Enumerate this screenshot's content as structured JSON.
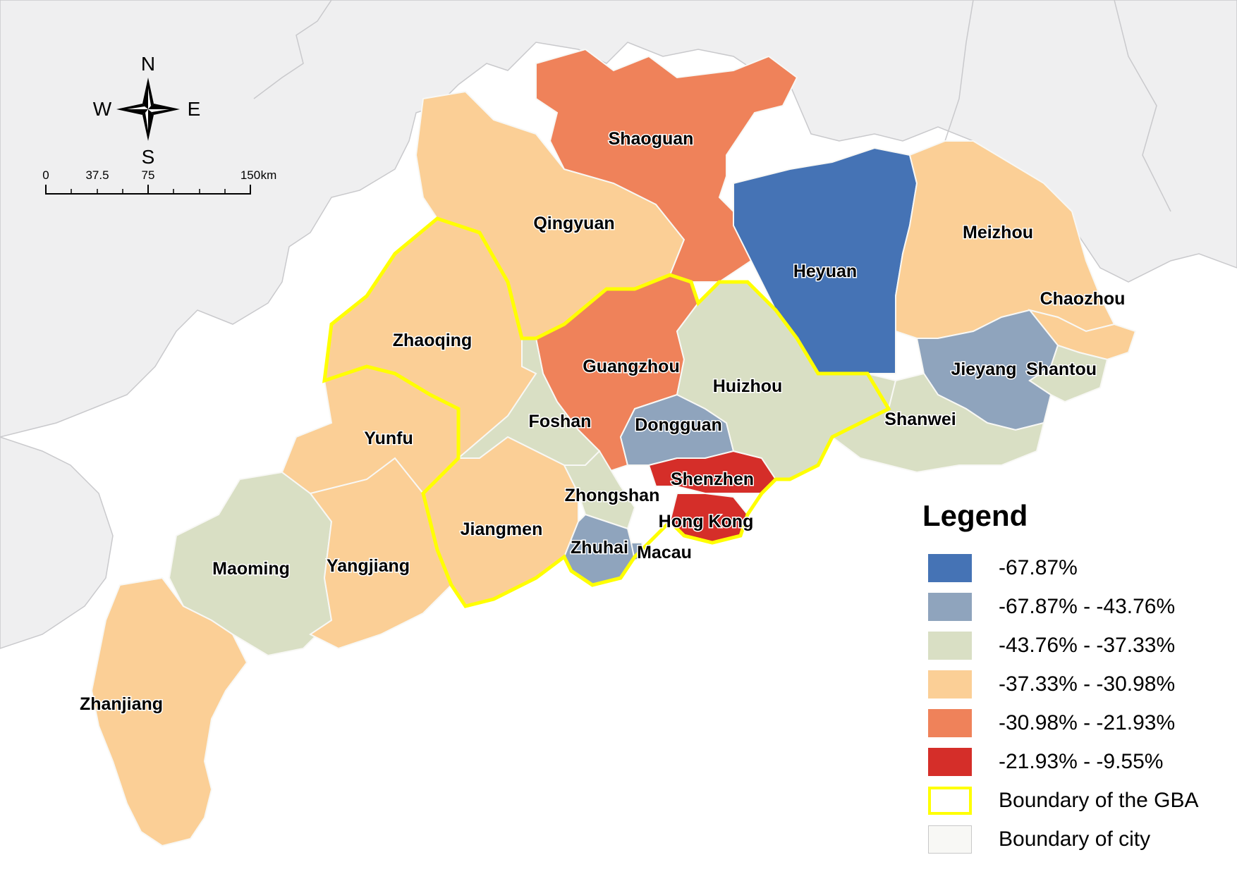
{
  "colors": {
    "class1": "#4573b5",
    "class2": "#8fa4bd",
    "class3": "#d9dfc4",
    "class4": "#fbcf96",
    "class5": "#ef825a",
    "class6": "#d52e29",
    "gba_boundary": "#ffff00",
    "city_boundary_fill": "#f8f8f5",
    "neighbor_land": "#efeff0",
    "neighbor_border": "#c9c9cc"
  },
  "compass": {
    "north": "N",
    "south": "S",
    "east": "E",
    "west": "W"
  },
  "scale_bar": {
    "ticks": [
      "0",
      "37.5",
      "75",
      "150"
    ],
    "unit": "km"
  },
  "cities": [
    {
      "name": "Shaoguan",
      "class": "class5"
    },
    {
      "name": "Qingyuan",
      "class": "class4"
    },
    {
      "name": "Heyuan",
      "class": "class1"
    },
    {
      "name": "Meizhou",
      "class": "class4"
    },
    {
      "name": "Chaozhou",
      "class": "class4"
    },
    {
      "name": "Zhaoqing",
      "class": "class4"
    },
    {
      "name": "Guangzhou",
      "class": "class5"
    },
    {
      "name": "Huizhou",
      "class": "class3"
    },
    {
      "name": "Jieyang",
      "class": "class2"
    },
    {
      "name": "Shantou",
      "class": "class3"
    },
    {
      "name": "Foshan",
      "class": "class3"
    },
    {
      "name": "Dongguan",
      "class": "class2"
    },
    {
      "name": "Shanwei",
      "class": "class3"
    },
    {
      "name": "Yunfu",
      "class": "class4"
    },
    {
      "name": "Shenzhen",
      "class": "class6"
    },
    {
      "name": "Zhongshan",
      "class": "class3"
    },
    {
      "name": "Hong Kong",
      "class": "class6"
    },
    {
      "name": "Jiangmen",
      "class": "class4"
    },
    {
      "name": "Zhuhai",
      "class": "class2"
    },
    {
      "name": "Macau",
      "class": "class2"
    },
    {
      "name": "Maoming",
      "class": "class3"
    },
    {
      "name": "Yangjiang",
      "class": "class4"
    },
    {
      "name": "Zhanjiang",
      "class": "class4"
    }
  ],
  "legend": {
    "title": "Legend",
    "items": [
      {
        "label": "-67.87%",
        "color": "#4573b5"
      },
      {
        "label": "-67.87% - -43.76%",
        "color": "#8fa4bd"
      },
      {
        "label": "-43.76% - -37.33%",
        "color": "#d9dfc4"
      },
      {
        "label": "-37.33% - -30.98%",
        "color": "#fbcf96"
      },
      {
        "label": "-30.98% - -21.93%",
        "color": "#ef825a"
      },
      {
        "label": "-21.93% - -9.55%",
        "color": "#d52e29"
      },
      {
        "label": "Boundary of the GBA",
        "color": "#ffff00",
        "style": "outline"
      },
      {
        "label": "Boundary of city",
        "color": "#f8f8f5",
        "style": "fill"
      }
    ]
  }
}
